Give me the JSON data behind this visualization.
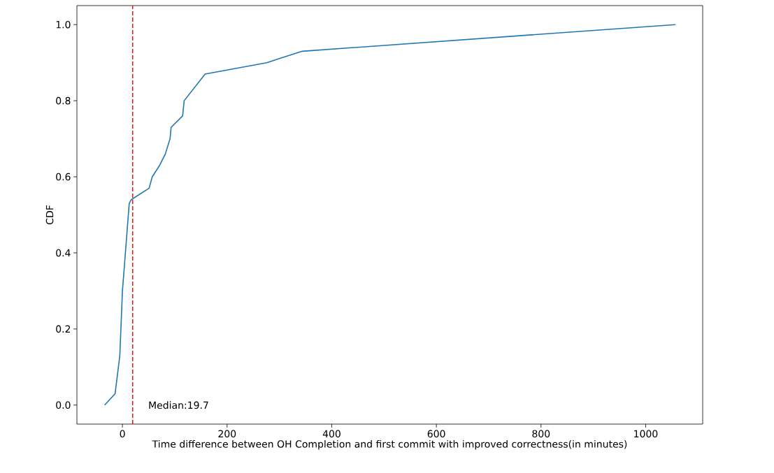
{
  "chart_data": {
    "type": "line",
    "xlabel": "Time difference between OH Completion and first commit with improved correctness(in minutes)",
    "ylabel": "CDF",
    "xlim": [
      -87,
      1109
    ],
    "ylim": [
      -0.05,
      1.05
    ],
    "xticks": [
      0,
      200,
      400,
      600,
      800,
      1000
    ],
    "yticks": [
      {
        "value": 0,
        "label": "0.0"
      },
      0.2,
      0.4,
      0.6,
      0.8,
      {
        "value": 1,
        "label": "1.0"
      }
    ],
    "series": [
      {
        "color": "#1f77b4",
        "x": [
          -34,
          -14,
          -5,
          0,
          4,
          13,
          17,
          51,
          57,
          71,
          82,
          91,
          93,
          115,
          118,
          158,
          276,
          298,
          344,
          1057
        ],
        "values": [
          0.0,
          0.03,
          0.13,
          0.3,
          0.37,
          0.53,
          0.54,
          0.57,
          0.6,
          0.63,
          0.66,
          0.7,
          0.73,
          0.76,
          0.8,
          0.87,
          0.9,
          0.91,
          0.93,
          1.0
        ]
      }
    ],
    "ref_lines": [
      {
        "axis": "x",
        "value": 19.7,
        "color": "#ff0000",
        "line_style": "dashed"
      }
    ],
    "annotations": [
      "Median:19.7"
    ]
  }
}
